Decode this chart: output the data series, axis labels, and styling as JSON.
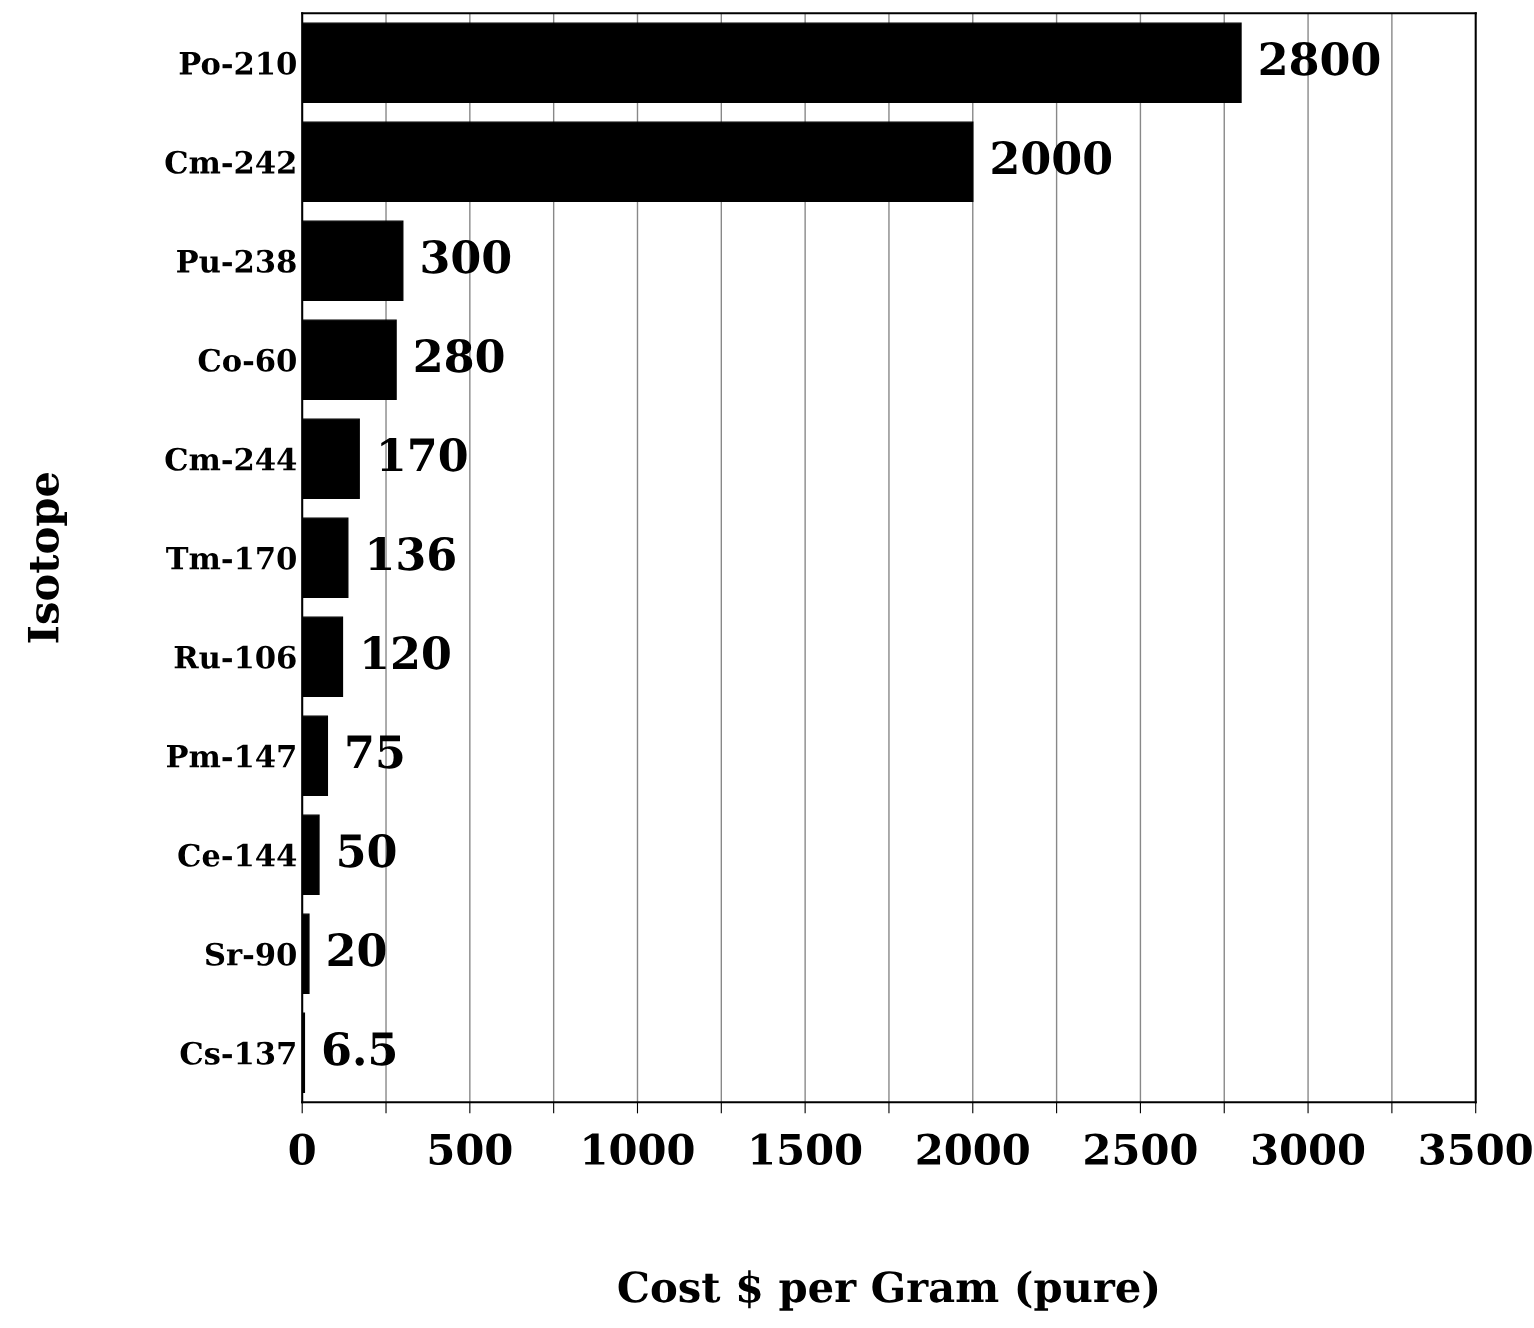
{
  "chart_data": {
    "type": "bar",
    "orientation": "horizontal",
    "xlabel": "Cost $ per Gram (pure)",
    "ylabel": "Isotope",
    "categories": [
      "Po-210",
      "Cm-242",
      "Pu-238",
      "Co-60",
      "Cm-244",
      "Tm-170",
      "Ru-106",
      "Pm-147",
      "Ce-144",
      "Sr-90",
      "Cs-137"
    ],
    "values": [
      2800,
      2000,
      300,
      280,
      170,
      136,
      120,
      75,
      50,
      20,
      6.5
    ],
    "color": "#000000",
    "xlim": [
      0,
      3500
    ],
    "xticks": [
      0,
      {
        "value": 250,
        "label": null
      },
      500,
      {
        "value": 750,
        "label": null
      },
      1000,
      {
        "value": 1250,
        "label": null
      },
      1500,
      {
        "value": 1750,
        "label": null
      },
      2000,
      {
        "value": 2250,
        "label": null
      },
      2500,
      {
        "value": 2750,
        "label": null
      },
      3000,
      {
        "value": 3250,
        "label": null
      },
      3500
    ],
    "grid": "x",
    "data_labels": true
  }
}
